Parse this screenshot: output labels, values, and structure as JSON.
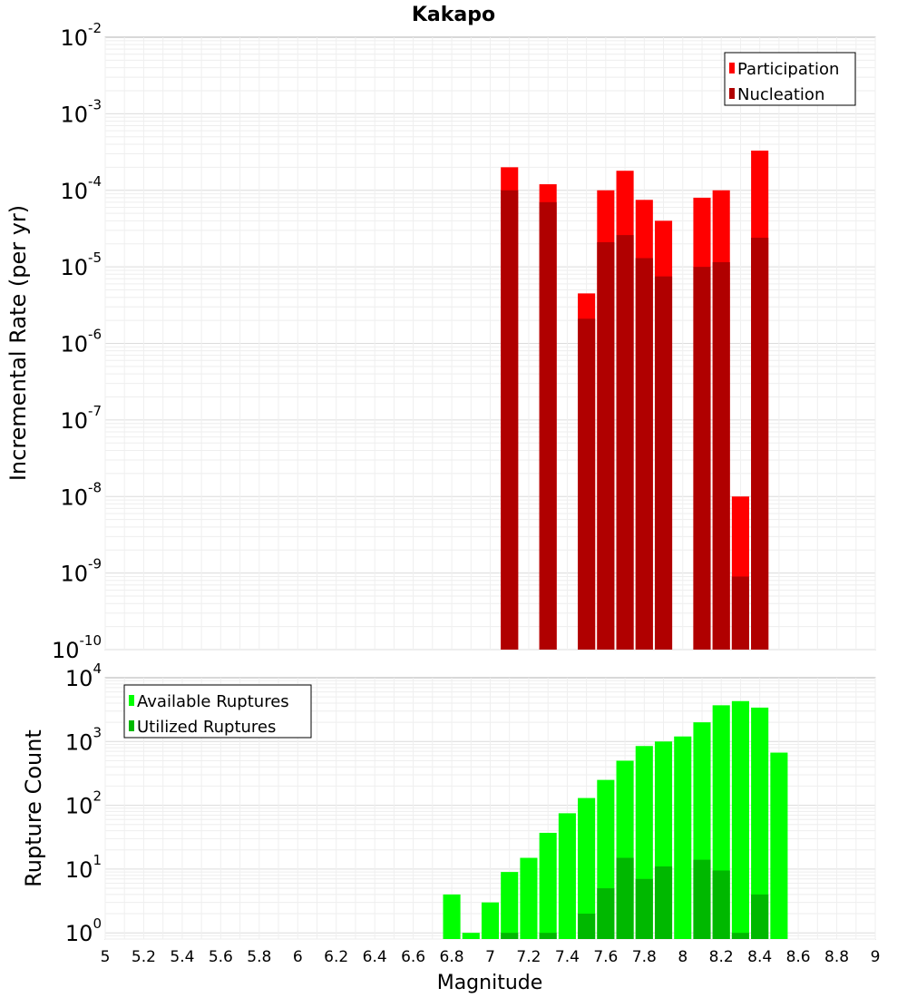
{
  "chart_data": [
    {
      "type": "bar",
      "title": "Kakapo",
      "ylabel": "Incremental Rate (per yr)",
      "yscale": "log",
      "ylim": [
        1e-10,
        0.01
      ],
      "y_ticks": [
        {
          "base": "10",
          "exp": "-10",
          "v": 1e-10
        },
        {
          "base": "10",
          "exp": "-9",
          "v": 1e-09
        },
        {
          "base": "10",
          "exp": "-8",
          "v": 1e-08
        },
        {
          "base": "10",
          "exp": "-7",
          "v": 1e-07
        },
        {
          "base": "10",
          "exp": "-6",
          "v": 1e-06
        },
        {
          "base": "10",
          "exp": "-5",
          "v": 1e-05
        },
        {
          "base": "10",
          "exp": "-4",
          "v": 0.0001
        },
        {
          "base": "10",
          "exp": "-3",
          "v": 0.001
        },
        {
          "base": "10",
          "exp": "-2",
          "v": 0.01
        }
      ],
      "x": [
        7.1,
        7.3,
        7.5,
        7.6,
        7.7,
        7.8,
        7.9,
        8.1,
        8.2,
        8.3,
        8.4
      ],
      "series": [
        {
          "name": "Participation",
          "color": "#ff0000",
          "values": [
            0.0002,
            0.00012,
            4.5e-06,
            0.0001,
            0.00018,
            7.5e-05,
            4e-05,
            8e-05,
            0.0001,
            1e-08,
            0.00033
          ]
        },
        {
          "name": "Nucleation",
          "color": "#b00000",
          "values": [
            0.0001,
            7e-05,
            2.1e-06,
            2.1e-05,
            2.6e-05,
            1.3e-05,
            7.5e-06,
            1e-05,
            1.15e-05,
            9e-10,
            2.4e-05
          ]
        }
      ],
      "legend_position": "top-right",
      "grid": true
    },
    {
      "type": "bar",
      "ylabel": "Rupture Count",
      "xlabel": "Magnitude",
      "yscale": "log",
      "ylim": [
        0.8,
        10000
      ],
      "xlim": [
        5,
        9
      ],
      "x_ticks": [
        "5",
        "5.2",
        "5.4",
        "5.6",
        "5.8",
        "6",
        "6.2",
        "6.4",
        "6.6",
        "6.8",
        "7",
        "7.2",
        "7.4",
        "7.6",
        "7.8",
        "8",
        "8.2",
        "8.4",
        "8.6",
        "8.8",
        "9"
      ],
      "y_ticks": [
        {
          "base": "10",
          "exp": "0",
          "v": 1
        },
        {
          "base": "10",
          "exp": "1",
          "v": 10
        },
        {
          "base": "10",
          "exp": "2",
          "v": 100
        },
        {
          "base": "10",
          "exp": "3",
          "v": 1000
        },
        {
          "base": "10",
          "exp": "4",
          "v": 10000
        }
      ],
      "x": [
        6.8,
        6.9,
        7.0,
        7.1,
        7.2,
        7.3,
        7.4,
        7.5,
        7.6,
        7.7,
        7.8,
        7.9,
        8.0,
        8.1,
        8.2,
        8.3,
        8.4,
        8.5
      ],
      "series": [
        {
          "name": "Available Ruptures",
          "color": "#00ff00",
          "values": [
            4,
            1,
            3,
            9,
            15,
            37,
            75,
            130,
            250,
            500,
            850,
            1000,
            1200,
            2000,
            3700,
            4300,
            3400,
            670
          ]
        },
        {
          "name": "Utilized Ruptures",
          "color": "#00b800",
          "values": [
            0,
            0,
            0,
            1,
            0,
            1,
            0,
            2,
            5,
            15,
            7,
            11,
            0,
            14,
            9.5,
            1,
            4,
            0
          ]
        }
      ],
      "legend_position": "top-left",
      "grid": true
    }
  ]
}
